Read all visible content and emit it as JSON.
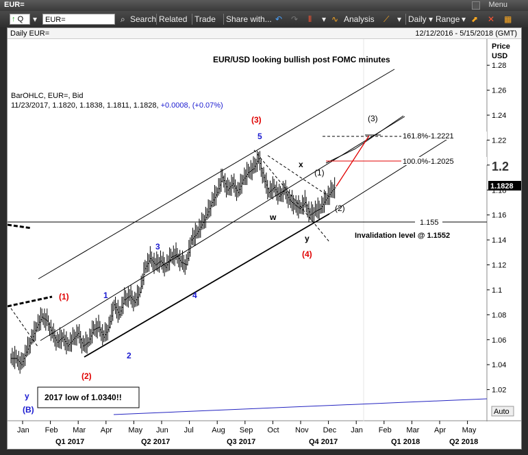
{
  "window": {
    "title": "EUR=",
    "menu_label": "Menu"
  },
  "toolbar": {
    "q_label": "Q",
    "symbol_value": "EUR=",
    "search_label": "Search",
    "related_label": "Related",
    "trade_label": "Trade",
    "share_label": "Share with...",
    "analysis_label": "Analysis",
    "daily_label": "Daily",
    "range_label": "Range"
  },
  "chart_header": {
    "left": "Daily EUR=",
    "right": "12/12/2016 - 5/15/2018 (GMT)"
  },
  "price_axis": {
    "title_line1": "Price",
    "title_line2": "USD",
    "last_price": "1.1828",
    "big_level": "1.2",
    "auto_label": "Auto"
  },
  "legend": {
    "line1": "BarOHLC, EUR=, Bid",
    "line2_prefix": "11/23/2017, 1.1820, 1.1838, 1.1811, 1.1828, ",
    "line2_change": "+0.0008, (+0.07%)"
  },
  "annotations": {
    "title": "EUR/USD looking bullish post FOMC minutes",
    "invalidation": "Invalidation level @ 1.1552",
    "low_box": "2017 low of 1.0340!!",
    "fib_1618": "161.8%-1.2221",
    "fib_100": "100.0%-1.2025",
    "level_1155": "1.155",
    "labels": [
      {
        "t": "(1)",
        "c": "red"
      },
      {
        "t": "(2)",
        "c": "red"
      },
      {
        "t": "(3)",
        "c": "red"
      },
      {
        "t": "(4)",
        "c": "red"
      },
      {
        "t": "1",
        "c": "blue"
      },
      {
        "t": "2",
        "c": "blue"
      },
      {
        "t": "3",
        "c": "blue"
      },
      {
        "t": "4",
        "c": "blue"
      },
      {
        "t": "5",
        "c": "blue"
      },
      {
        "t": "y",
        "c": "blue"
      },
      {
        "t": "(B)",
        "c": "blue"
      },
      {
        "t": "w",
        "c": "black"
      },
      {
        "t": "x",
        "c": "black"
      },
      {
        "t": "y",
        "c": "black"
      },
      {
        "t": "(1)",
        "c": "black"
      },
      {
        "t": "(2)",
        "c": "black"
      },
      {
        "t": "(3)",
        "c": "black"
      }
    ]
  },
  "colors": {
    "up": "#000000",
    "red": "#e00000",
    "blue": "#1a1ad0",
    "accent_line": "#d00000"
  },
  "chart_data": {
    "type": "bar",
    "title": "EUR/USD looking bullish post FOMC minutes",
    "ylim": [
      1.0,
      1.29
    ],
    "yticks": [
      "1.28",
      "1.26",
      "1.24",
      "1.22",
      "1.2",
      "1.18",
      "1.16",
      "1.14",
      "1.12",
      "1.1",
      "1.08",
      "1.06",
      "1.04",
      "1.02"
    ],
    "months": [
      "Jan",
      "Feb",
      "Mar",
      "Apr",
      "May",
      "Jun",
      "Jul",
      "Aug",
      "Sep",
      "Oct",
      "Nov",
      "Dec",
      "Jan",
      "Feb",
      "Mar",
      "Apr",
      "May"
    ],
    "quarters": [
      "Q1 2017",
      "Q2 2017",
      "Q3 2017",
      "Q4 2017",
      "Q1 2018",
      "Q2 2018"
    ],
    "series": [
      {
        "values": [
          1.045,
          1.04,
          1.05,
          1.06,
          1.07,
          1.078,
          1.075,
          1.065,
          1.058,
          1.062,
          1.055,
          1.06,
          1.065,
          1.055,
          1.058,
          1.068,
          1.07,
          1.062,
          1.07,
          1.088,
          1.08,
          1.092,
          1.095,
          1.09,
          1.098,
          1.117,
          1.125,
          1.12,
          1.123,
          1.118,
          1.126,
          1.128,
          1.122,
          1.12,
          1.14,
          1.145,
          1.152,
          1.16,
          1.17,
          1.178,
          1.19,
          1.18,
          1.185,
          1.178,
          1.188,
          1.194,
          1.197,
          1.205,
          1.19,
          1.178,
          1.182,
          1.175,
          1.18,
          1.172,
          1.168,
          1.165,
          1.17,
          1.16,
          1.163,
          1.165,
          1.172,
          1.178,
          1.183
        ]
      }
    ]
  }
}
